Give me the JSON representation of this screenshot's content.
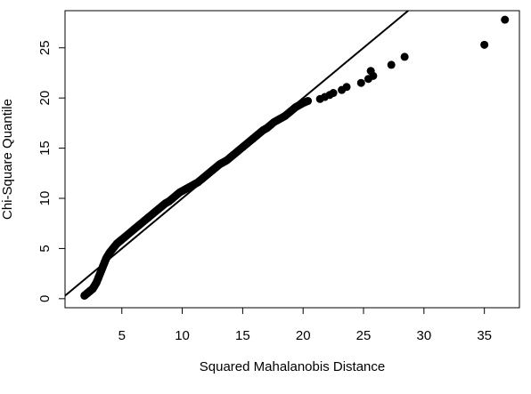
{
  "chart_data": {
    "type": "scatter",
    "xlabel": "Squared Mahalanobis Distance",
    "ylabel": "Chi-Square Quantile",
    "xlim": [
      0.3,
      37.9
    ],
    "ylim": [
      -0.9,
      28.7
    ],
    "xticks": [
      5,
      10,
      15,
      20,
      25,
      30,
      35
    ],
    "yticks": [
      0,
      5,
      10,
      15,
      20,
      25
    ],
    "grid": false,
    "legend": "none",
    "reference_line": {
      "intercept": 0,
      "slope": 1
    },
    "marker_color": "#000000",
    "points_curve": [
      [
        1.9,
        0.3
      ],
      [
        2.0,
        0.4
      ],
      [
        2.1,
        0.5
      ],
      [
        2.2,
        0.6
      ],
      [
        2.3,
        0.7
      ],
      [
        2.4,
        0.8
      ],
      [
        2.5,
        0.9
      ],
      [
        2.6,
        1.0
      ],
      [
        2.7,
        1.2
      ],
      [
        2.8,
        1.4
      ],
      [
        2.9,
        1.6
      ],
      [
        3.0,
        1.9
      ],
      [
        3.1,
        2.2
      ],
      [
        3.2,
        2.5
      ],
      [
        3.3,
        2.8
      ],
      [
        3.4,
        3.1
      ],
      [
        3.5,
        3.4
      ],
      [
        3.6,
        3.7
      ],
      [
        3.7,
        4.0
      ],
      [
        3.8,
        4.2
      ],
      [
        3.9,
        4.4
      ],
      [
        4.0,
        4.6
      ],
      [
        4.2,
        4.9
      ],
      [
        4.4,
        5.2
      ],
      [
        4.6,
        5.5
      ],
      [
        4.8,
        5.7
      ],
      [
        5.0,
        5.9
      ],
      [
        5.3,
        6.2
      ],
      [
        5.6,
        6.5
      ],
      [
        5.9,
        6.8
      ],
      [
        6.2,
        7.1
      ],
      [
        6.5,
        7.4
      ],
      [
        6.8,
        7.7
      ],
      [
        7.1,
        8.0
      ],
      [
        7.4,
        8.3
      ],
      [
        7.7,
        8.6
      ],
      [
        8.0,
        8.9
      ],
      [
        8.3,
        9.2
      ],
      [
        8.6,
        9.5
      ],
      [
        8.9,
        9.7
      ],
      [
        9.2,
        10.0
      ],
      [
        9.5,
        10.3
      ],
      [
        9.8,
        10.6
      ],
      [
        10.1,
        10.8
      ],
      [
        10.4,
        11.0
      ],
      [
        10.7,
        11.2
      ],
      [
        11.0,
        11.4
      ],
      [
        11.3,
        11.6
      ],
      [
        11.6,
        11.9
      ],
      [
        11.9,
        12.2
      ],
      [
        12.2,
        12.5
      ],
      [
        12.5,
        12.8
      ],
      [
        12.8,
        13.1
      ],
      [
        13.1,
        13.4
      ],
      [
        13.4,
        13.6
      ],
      [
        13.7,
        13.8
      ],
      [
        14.0,
        14.1
      ],
      [
        14.3,
        14.4
      ],
      [
        14.6,
        14.7
      ],
      [
        14.9,
        15.0
      ],
      [
        15.2,
        15.3
      ],
      [
        15.5,
        15.6
      ],
      [
        15.8,
        15.9
      ],
      [
        16.1,
        16.2
      ],
      [
        16.4,
        16.5
      ],
      [
        16.7,
        16.8
      ],
      [
        17.0,
        17.0
      ],
      [
        17.3,
        17.3
      ],
      [
        17.6,
        17.6
      ],
      [
        17.9,
        17.8
      ],
      [
        18.2,
        18.0
      ],
      [
        18.5,
        18.2
      ],
      [
        18.8,
        18.5
      ],
      [
        19.1,
        18.8
      ],
      [
        19.4,
        19.1
      ],
      [
        19.7,
        19.3
      ],
      [
        20.0,
        19.5
      ],
      [
        20.4,
        19.7
      ]
    ],
    "points_outliers": [
      [
        21.4,
        19.9
      ],
      [
        21.8,
        20.1
      ],
      [
        22.2,
        20.3
      ],
      [
        22.5,
        20.5
      ],
      [
        23.2,
        20.8
      ],
      [
        23.6,
        21.1
      ],
      [
        24.8,
        21.5
      ],
      [
        25.4,
        21.9
      ],
      [
        25.8,
        22.2
      ],
      [
        25.6,
        22.7
      ],
      [
        27.3,
        23.3
      ],
      [
        28.4,
        24.1
      ],
      [
        35.0,
        25.3
      ],
      [
        36.7,
        27.8
      ]
    ]
  }
}
